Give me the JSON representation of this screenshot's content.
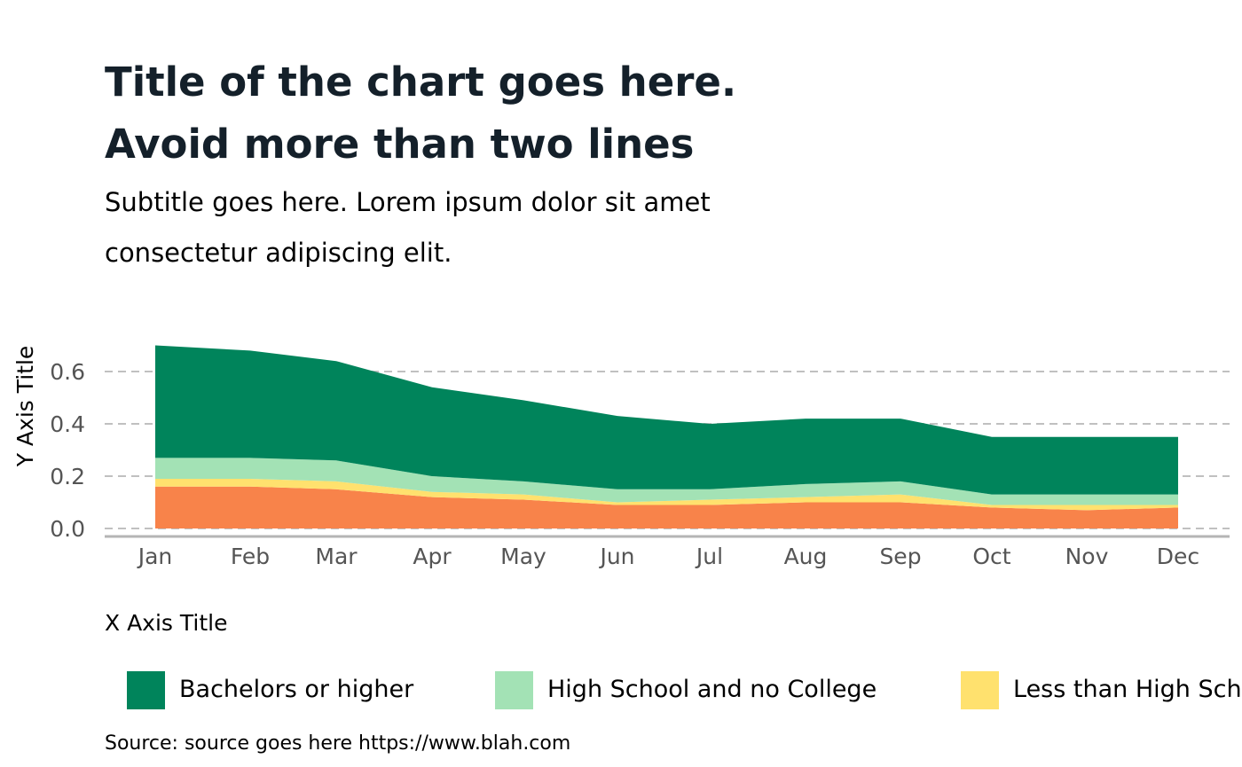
{
  "chart_data": {
    "type": "area",
    "stacked": true,
    "title": "Title of the chart goes here.\nAvoid more than two lines",
    "subtitle": "Subtitle goes here. Lorem ipsum dolor sit amet\nconsectetur adipiscing elit.",
    "xlabel": "X Axis Title",
    "ylabel": "Y Axis Title",
    "categories": [
      "Jan",
      "Feb",
      "Mar",
      "Apr",
      "May",
      "Jun",
      "Jul",
      "Aug",
      "Sep",
      "Oct",
      "Nov",
      "Dec"
    ],
    "yticks": [
      "0.0",
      "0.2",
      "0.4",
      "0.6"
    ],
    "ylim": [
      0,
      0.7
    ],
    "grid": "horizontal dashed",
    "legend_position": "bottom",
    "series": [
      {
        "name": "Less than High School",
        "color": "#F8834A",
        "values": [
          0.16,
          0.16,
          0.15,
          0.12,
          0.11,
          0.09,
          0.09,
          0.1,
          0.1,
          0.08,
          0.07,
          0.08
        ]
      },
      {
        "name": "Less than High School",
        "color": "#FFE16E",
        "values": [
          0.03,
          0.03,
          0.03,
          0.02,
          0.02,
          0.01,
          0.02,
          0.02,
          0.03,
          0.01,
          0.02,
          0.01
        ]
      },
      {
        "name": "High School and no College",
        "color": "#A3E2B5",
        "values": [
          0.08,
          0.08,
          0.08,
          0.06,
          0.05,
          0.05,
          0.04,
          0.05,
          0.05,
          0.04,
          0.04,
          0.04
        ]
      },
      {
        "name": "Bachelors or higher",
        "color": "#00845B",
        "values": [
          0.43,
          0.41,
          0.38,
          0.34,
          0.31,
          0.28,
          0.25,
          0.25,
          0.24,
          0.22,
          0.22,
          0.22
        ]
      }
    ]
  },
  "legend": {
    "items": [
      {
        "label": "Bachelors or higher",
        "color": "#00845B"
      },
      {
        "label": "High School and no College",
        "color": "#A3E2B5"
      },
      {
        "label": "Less than High School",
        "color": "#FFE16E"
      }
    ]
  },
  "source": "Source: source goes here https://www.blah.com"
}
